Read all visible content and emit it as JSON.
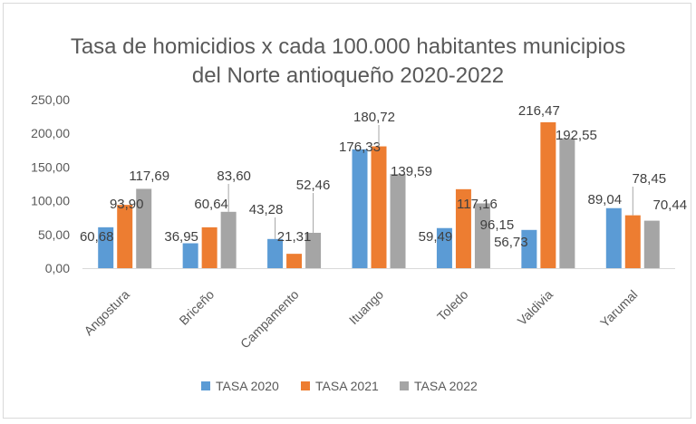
{
  "chart_data": {
    "type": "bar",
    "title_lines": [
      "Tasa de homicidios x cada 100.000 habitantes municipios",
      "del Norte antioqueño 2020-2022"
    ],
    "categories": [
      "Angostura",
      "Briceño",
      "Campamento",
      "Ituango",
      "Toledo",
      "Valdivia",
      "Yarumal"
    ],
    "series": [
      {
        "name": "TASA 2020",
        "color": "#5b9bd5",
        "values": [
          60.68,
          36.95,
          43.28,
          176.33,
          59.49,
          56.73,
          89.04
        ],
        "labels": [
          "60,68",
          "36,95",
          "43,28",
          "176,33",
          "59,49",
          "56,73",
          "89,04"
        ]
      },
      {
        "name": "TASA 2021",
        "color": "#ed7d31",
        "values": [
          93.9,
          60.64,
          21.31,
          180.72,
          117.16,
          216.47,
          78.45
        ],
        "labels": [
          "93,90",
          "60,64",
          "21,31",
          "180,72",
          "117,16",
          "216,47",
          "78,45"
        ]
      },
      {
        "name": "TASA 2022",
        "color": "#a5a5a5",
        "values": [
          117.69,
          83.6,
          52.46,
          139.59,
          96.15,
          192.55,
          70.44
        ],
        "labels": [
          "117,69",
          "83,60",
          "52,46",
          "139,59",
          "96,15",
          "192,55",
          "70,44"
        ]
      }
    ],
    "ylim": [
      0,
      250
    ],
    "yticks": [
      0,
      50,
      100,
      150,
      200,
      250
    ],
    "ytick_labels": [
      "0,00",
      "50,00",
      "100,00",
      "150,00",
      "200,00",
      "250,00"
    ],
    "legend_position": "bottom",
    "grid": false,
    "xlabel": "",
    "ylabel": ""
  }
}
